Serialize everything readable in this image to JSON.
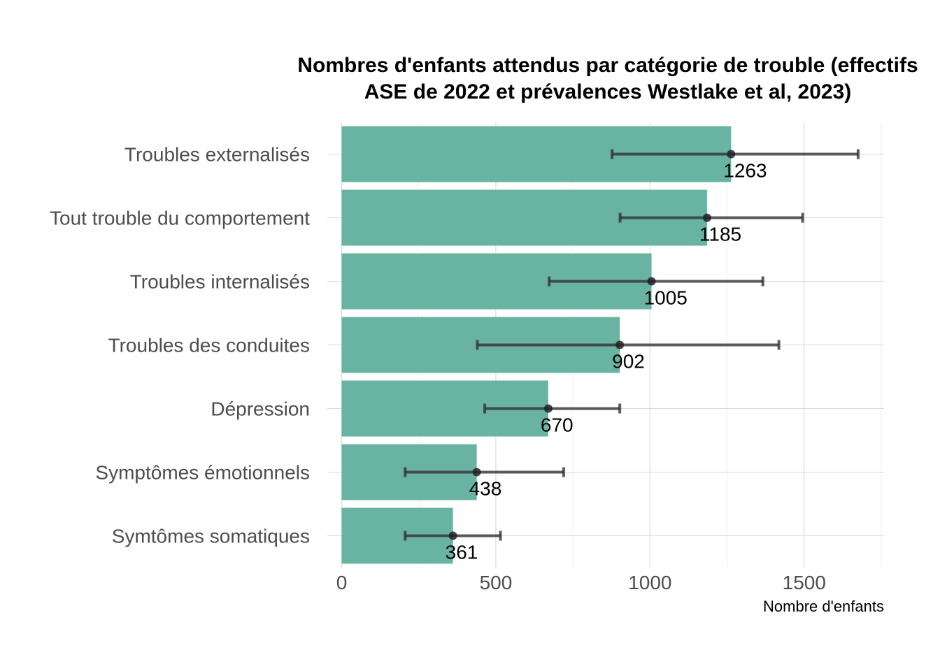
{
  "chart_data": {
    "type": "bar",
    "orientation": "horizontal",
    "title": "Nombres d'enfants attendus par catégorie de trouble (effectifs ASE de 2022 et prévalences Westlake et al, 2023)",
    "title_lines": [
      "Nombres d'enfants attendus par catégorie de trouble (effectifs",
      "ASE de 2022 et prévalences Westlake et al, 2023)"
    ],
    "xlabel": "Nombre d'enfants",
    "ylabel": "",
    "xlim": [
      0,
      1760
    ],
    "x_ticks": [
      0,
      500,
      1000,
      1500
    ],
    "x_tick_labels": [
      "0",
      "500",
      "1000",
      "1500"
    ],
    "grid": true,
    "categories": [
      "Troubles externalisés",
      "Tout trouble du comportement",
      "Troubles internalisés",
      "Troubles des conduites",
      "Dépression",
      "Symptômes émotionnels",
      "Symtômes somatiques"
    ],
    "values": [
      1263,
      1185,
      1005,
      902,
      670,
      438,
      361
    ],
    "value_labels": [
      "1263",
      "1185",
      "1005",
      "902",
      "670",
      "438",
      "361"
    ],
    "error_low": [
      877,
      903,
      673,
      440,
      464,
      206,
      206
    ],
    "error_high": [
      1675,
      1495,
      1366,
      1418,
      902,
      720,
      515
    ],
    "bar_color": "#69b3a2",
    "error_color": "#333333"
  }
}
